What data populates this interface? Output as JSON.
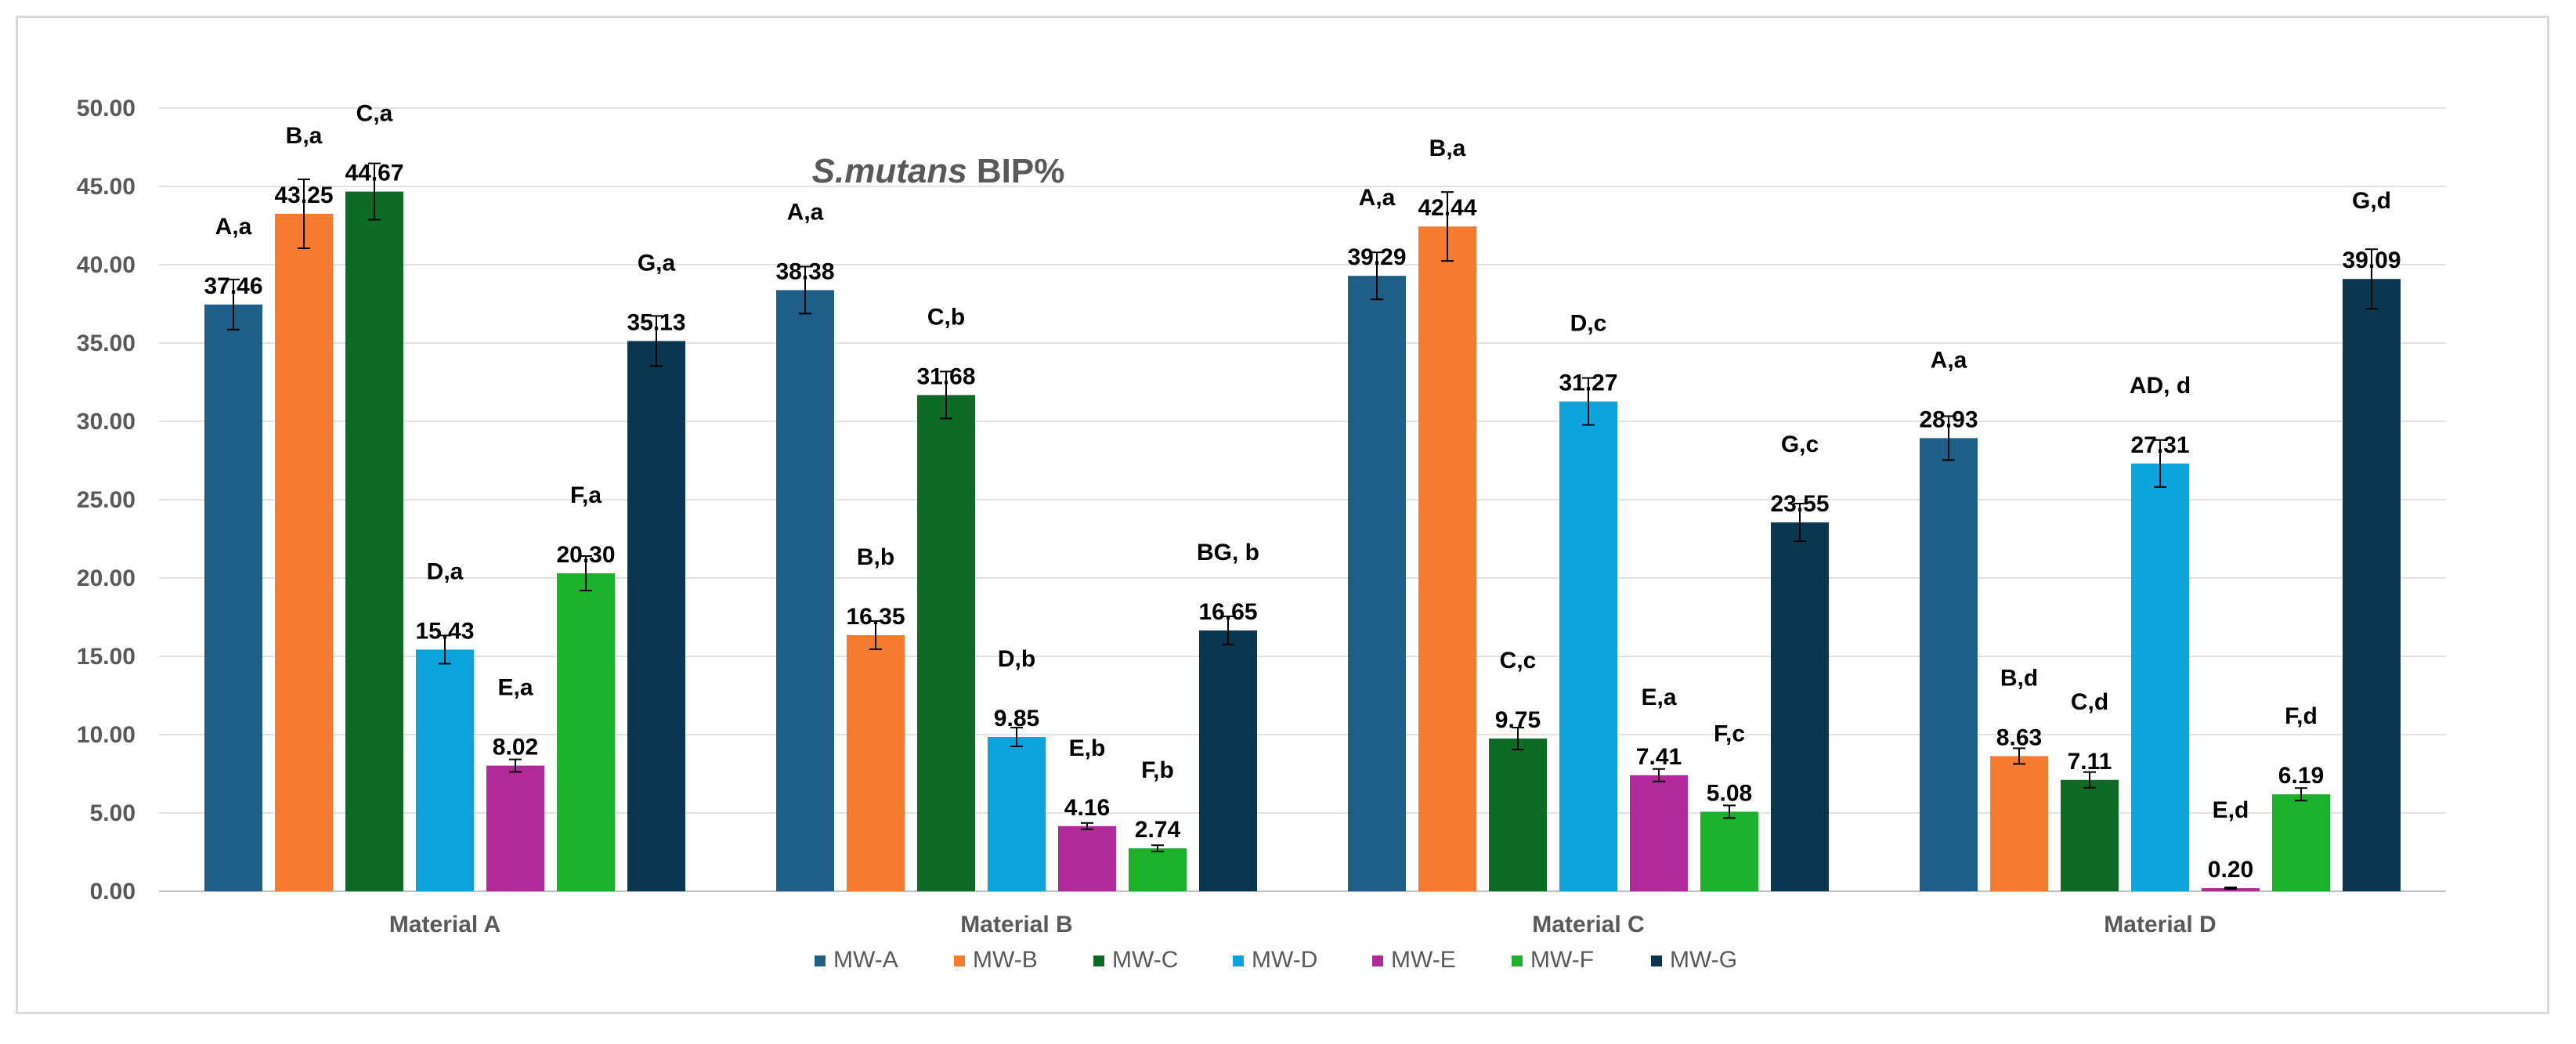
{
  "chart_data": {
    "type": "bar",
    "title_italic": "S.mutans",
    "title_rest": " BIP%",
    "xlabel": "",
    "ylabel": "",
    "ylim": [
      0,
      50
    ],
    "yticks": [
      "0.00",
      "5.00",
      "10.00",
      "15.00",
      "20.00",
      "25.00",
      "30.00",
      "35.00",
      "40.00",
      "45.00",
      "50.00"
    ],
    "grid": true,
    "legend_position": "bottom",
    "categories": [
      "Material A",
      "Material B",
      "Material C",
      "Material D"
    ],
    "series": [
      {
        "name": "MW-A",
        "color": "#1f5f87",
        "values": [
          37.46,
          38.38,
          39.29,
          28.93
        ],
        "errors": [
          1.6,
          1.5,
          1.5,
          1.4
        ],
        "labels": [
          "37.46",
          "38.38",
          "39.29",
          "28.93"
        ],
        "sig": [
          "A,a",
          "A,a",
          "A,a",
          "A,a"
        ]
      },
      {
        "name": "MW-B",
        "color": "#f47b30",
        "values": [
          43.25,
          16.35,
          42.44,
          8.63
        ],
        "errors": [
          2.2,
          0.9,
          2.2,
          0.5
        ],
        "labels": [
          "43.25",
          "16.35",
          "42.44",
          "8.63"
        ],
        "sig": [
          "B,a",
          "B,b",
          "B,a",
          "B,d"
        ]
      },
      {
        "name": "MW-C",
        "color": "#0e6b25",
        "values": [
          44.67,
          31.68,
          9.75,
          7.11
        ],
        "errors": [
          1.8,
          1.5,
          0.7,
          0.5
        ],
        "labels": [
          "44.67",
          "31.68",
          "9.75",
          "7.11"
        ],
        "sig": [
          "C,a",
          "C,b",
          "C,c",
          "C,d"
        ]
      },
      {
        "name": "MW-D",
        "color": "#0fa3dc",
        "values": [
          15.43,
          9.85,
          31.27,
          27.31
        ],
        "errors": [
          0.9,
          0.6,
          1.5,
          1.5
        ],
        "labels": [
          "15.43",
          "9.85",
          "31.27",
          "27.31"
        ],
        "sig": [
          "D,a",
          "D,b",
          "D,c",
          "AD,  d"
        ]
      },
      {
        "name": "MW-E",
        "color": "#b02a9a",
        "values": [
          8.02,
          4.16,
          7.41,
          0.2
        ],
        "errors": [
          0.4,
          0.2,
          0.4,
          0.05
        ],
        "labels": [
          "8.02",
          "4.16",
          "7.41",
          "0.20"
        ],
        "sig": [
          "E,a",
          "E,b",
          "E,a",
          "E,d"
        ]
      },
      {
        "name": "MW-F",
        "color": "#1cb12c",
        "values": [
          20.3,
          2.74,
          5.08,
          6.19
        ],
        "errors": [
          1.1,
          0.2,
          0.4,
          0.4
        ],
        "labels": [
          "20.30",
          "2.74",
          "5.08",
          "6.19"
        ],
        "sig": [
          "F,a",
          "F,b",
          "F,c",
          "F,d"
        ]
      },
      {
        "name": "MW-G",
        "color": "#0b3650",
        "values": [
          35.13,
          16.65,
          23.55,
          39.09
        ],
        "errors": [
          1.6,
          0.9,
          1.2,
          1.9
        ],
        "labels": [
          "35.13",
          "16.65",
          "23.55",
          "39.09"
        ],
        "sig": [
          "G,a",
          "BG, b",
          "G,c",
          "G,d"
        ]
      }
    ]
  }
}
